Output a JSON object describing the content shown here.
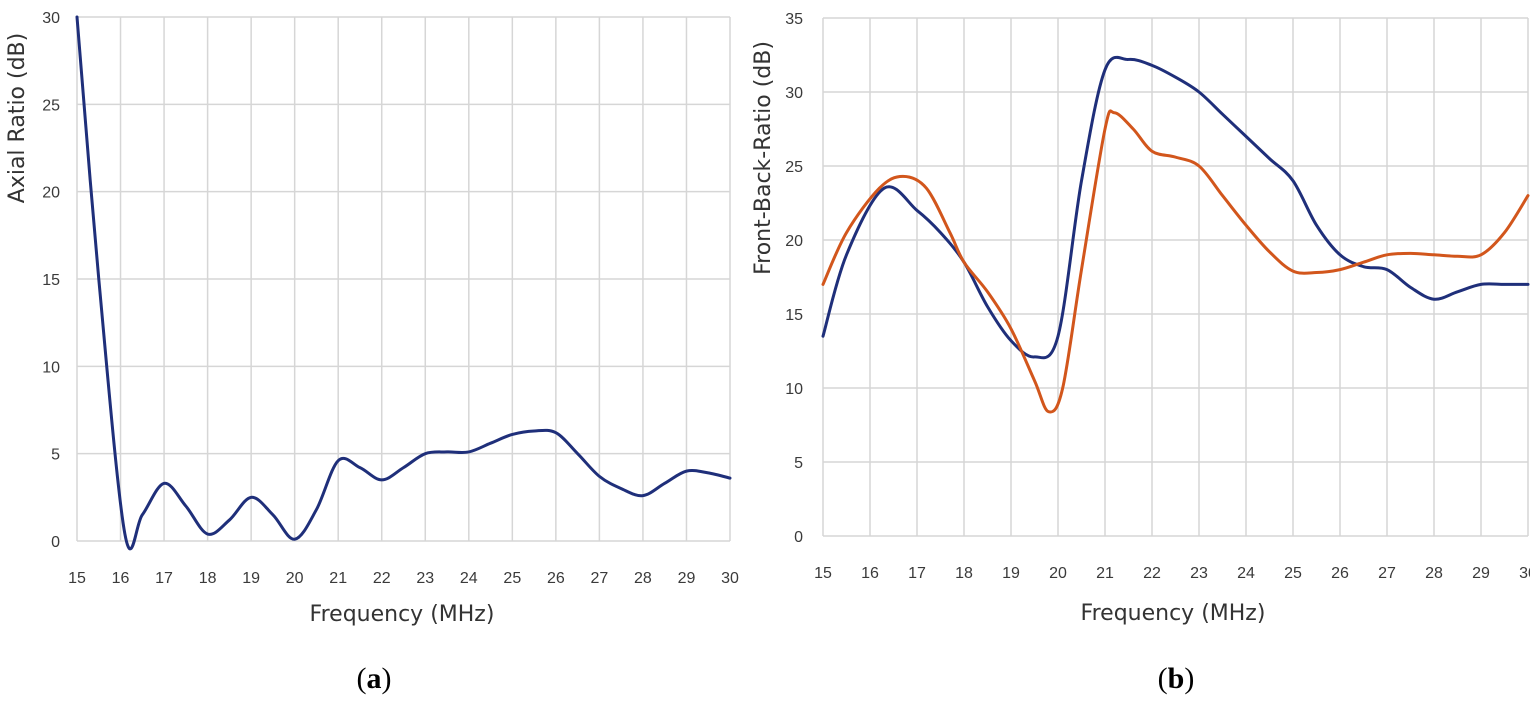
{
  "chart_data": [
    {
      "id": "a",
      "type": "line",
      "panel_label": "a",
      "xlabel": "Frequency (MHz)",
      "ylabel": "Axial Ratio (dB)",
      "xlim": [
        15,
        30
      ],
      "ylim": [
        0,
        30
      ],
      "xticks": [
        15,
        16,
        17,
        18,
        19,
        20,
        21,
        22,
        23,
        24,
        25,
        26,
        27,
        28,
        29,
        30
      ],
      "yticks": [
        0,
        5,
        10,
        15,
        20,
        25,
        30
      ],
      "grid": true,
      "series": [
        {
          "color": "#1f2f7a",
          "x": [
            15,
            15.5,
            16.1,
            16.5,
            17,
            17.5,
            18,
            18.5,
            19,
            19.5,
            20,
            20.5,
            21,
            21.5,
            22,
            22.5,
            23,
            23.5,
            24,
            24.5,
            25,
            25.5,
            26,
            26.5,
            27,
            27.5,
            28,
            28.5,
            29,
            29.5,
            30
          ],
          "y": [
            30,
            15,
            0.4,
            1.5,
            3.3,
            2.0,
            0.4,
            1.2,
            2.5,
            1.5,
            0.1,
            1.8,
            4.6,
            4.2,
            3.5,
            4.2,
            5.0,
            5.1,
            5.1,
            5.6,
            6.1,
            6.3,
            6.2,
            5.0,
            3.7,
            3.0,
            2.6,
            3.3,
            4.0,
            3.9,
            3.6
          ]
        }
      ]
    },
    {
      "id": "b",
      "type": "line",
      "panel_label": "b",
      "xlabel": "Frequency (MHz)",
      "ylabel": "Front-Back-Ratio (dB)",
      "xlim": [
        15,
        30
      ],
      "ylim": [
        0,
        35
      ],
      "xticks": [
        15,
        16,
        17,
        18,
        19,
        20,
        21,
        22,
        23,
        24,
        25,
        26,
        27,
        28,
        29,
        30
      ],
      "yticks": [
        0,
        5,
        10,
        15,
        20,
        25,
        30,
        35
      ],
      "grid": true,
      "series": [
        {
          "color": "#1f2f7a",
          "x": [
            15,
            15.5,
            16.3,
            17,
            17.5,
            18,
            18.5,
            19,
            19.5,
            20,
            20.5,
            21,
            21.5,
            22,
            22.5,
            23,
            23.5,
            24,
            24.5,
            25,
            25.5,
            26,
            26.5,
            27,
            27.5,
            28,
            28.5,
            29,
            29.5,
            30
          ],
          "y": [
            13.5,
            19,
            23.5,
            22,
            20.5,
            18.5,
            15.5,
            13.2,
            12.1,
            13.5,
            24,
            31.5,
            32.2,
            31.8,
            31,
            30,
            28.5,
            27,
            25.5,
            24,
            21,
            19,
            18.2,
            18,
            16.8,
            16,
            16.5,
            17,
            17,
            17
          ]
        },
        {
          "color": "#d2561c",
          "x": [
            15,
            15.5,
            16.2,
            16.7,
            17.2,
            17.7,
            18,
            18.5,
            19,
            19.5,
            19.8,
            20.1,
            20.5,
            21,
            21.2,
            21.6,
            22,
            22.5,
            23,
            23.5,
            24,
            24.5,
            25,
            25.5,
            26,
            26.5,
            27,
            27.5,
            28,
            28.5,
            29,
            29.5,
            30
          ],
          "y": [
            17,
            20.5,
            23.5,
            24.3,
            23.5,
            20.5,
            18.5,
            16.5,
            14,
            10.5,
            8.4,
            10,
            18,
            27.5,
            28.6,
            27.5,
            26,
            25.6,
            25,
            23,
            21,
            19.2,
            17.9,
            17.8,
            18,
            18.5,
            19,
            19.1,
            19,
            18.9,
            19,
            20.5,
            23
          ]
        }
      ]
    }
  ]
}
